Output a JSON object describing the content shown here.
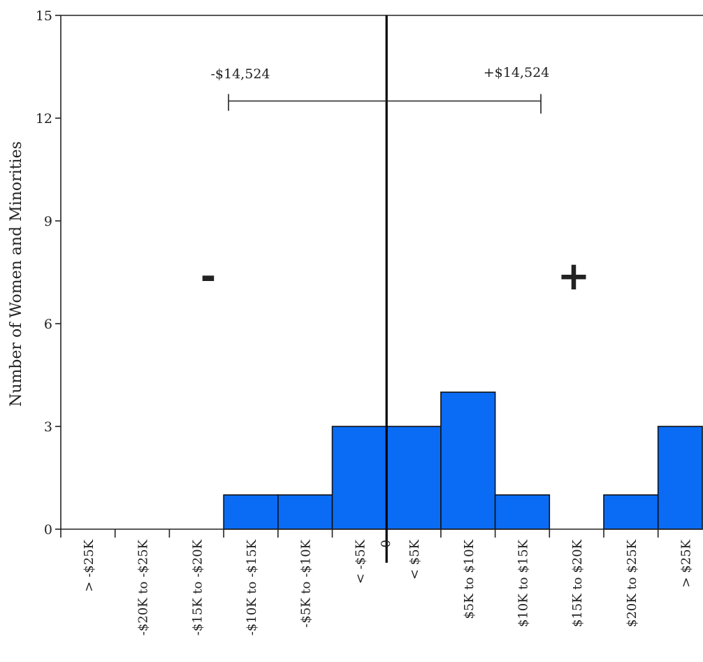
{
  "chart_data": {
    "type": "bar",
    "title": "",
    "xlabel": "",
    "ylabel": "Number of Women and Minorities",
    "ylim": [
      0,
      15
    ],
    "yticks": [
      0,
      3,
      6,
      9,
      12,
      15
    ],
    "categories": [
      "> -$25K",
      "-$20K to -$25K",
      "-$15K to -$20K",
      "-$10K to -$15K",
      "-$5K to -$10K",
      "< -$5K",
      "< $5K",
      "$5K to $10K",
      "$10K to $15K",
      "$15K to $20K",
      "$20K to $25K",
      "> $25K"
    ],
    "values": [
      0,
      0,
      0,
      1,
      1,
      3,
      3,
      4,
      1,
      0,
      1,
      3
    ],
    "bar_color": "#0a6cf5",
    "zero_label": "0",
    "annotations": {
      "minus_label": "-$14,524",
      "plus_label": "+$14,524",
      "minus_sign": "-",
      "plus_sign": "+",
      "bracket_level": 12.5
    },
    "grid": false
  }
}
